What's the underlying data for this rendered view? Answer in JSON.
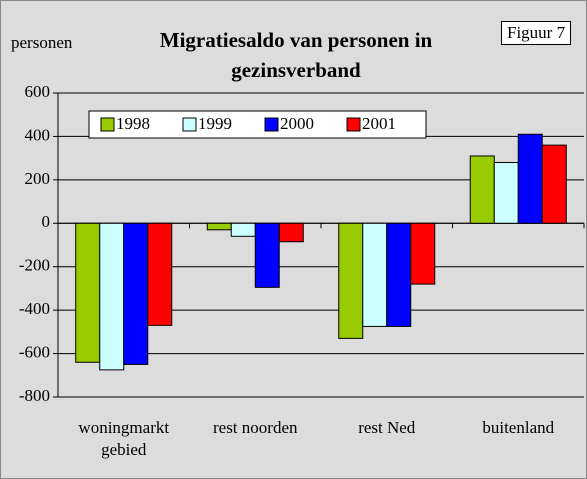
{
  "chart_data": {
    "type": "bar",
    "title": "Migratiesaldo van personen in gezinsverband",
    "y_label": "personen",
    "annotation": "Figuur 7",
    "categories": [
      "woningmarkt gebied",
      "rest noorden",
      "rest Ned",
      "buitenland"
    ],
    "series": [
      {
        "name": "1998",
        "color": "#99cc00",
        "values": [
          -640,
          -30,
          -530,
          310
        ]
      },
      {
        "name": "1999",
        "color": "#ccffff",
        "values": [
          -675,
          -60,
          -475,
          280
        ]
      },
      {
        "name": "2000",
        "color": "#0000ff",
        "values": [
          -650,
          -295,
          -475,
          410
        ]
      },
      {
        "name": "2001",
        "color": "#ff0000",
        "values": [
          -470,
          -85,
          -280,
          360
        ]
      }
    ],
    "ylim": [
      -800,
      600
    ],
    "yticks": [
      -800,
      -600,
      -400,
      -200,
      0,
      200,
      400,
      600
    ],
    "grid": true
  }
}
